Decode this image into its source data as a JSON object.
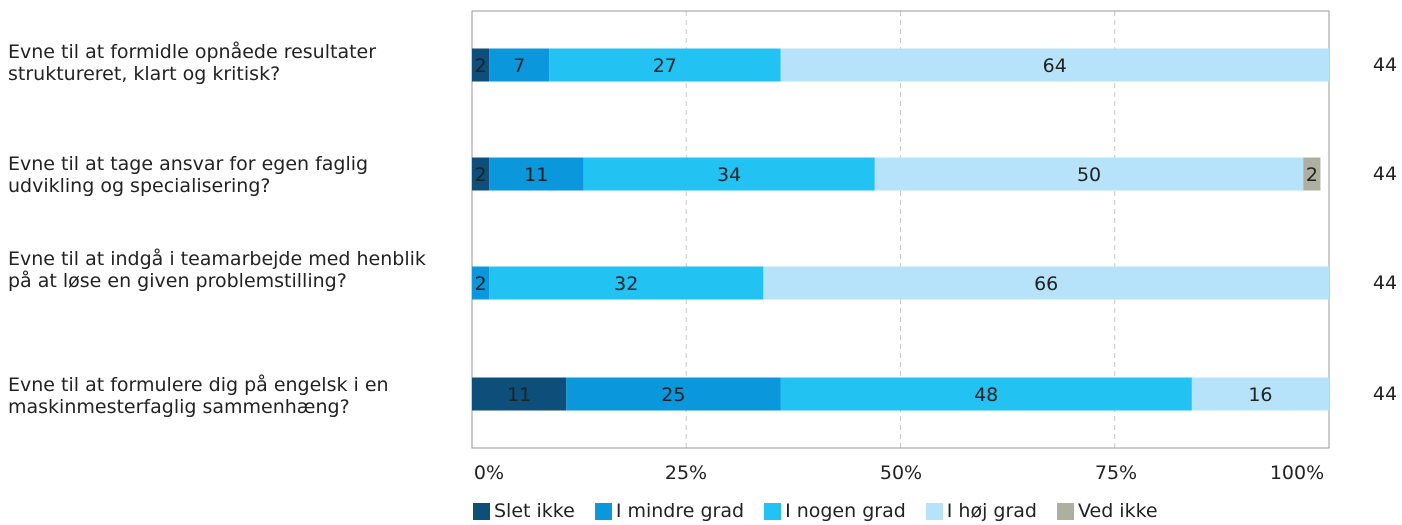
{
  "chart_data": {
    "type": "bar",
    "orientation": "horizontal",
    "stacked": true,
    "categories": [
      "Evne til at formidle opnåede resultater struktureret, klart og kritisk?",
      "Evne til at tage ansvar for egen faglig udvikling og specialisering?",
      "Evne til at indgå i teamarbejde med henblik på at løse en given problemstilling?",
      "Evne til at formulere dig på engelsk i en maskinmesterfaglig sammenhæng?"
    ],
    "series": [
      {
        "name": "Slet ikke",
        "color": "#0e4e7b",
        "values": [
          2,
          2,
          0,
          11
        ]
      },
      {
        "name": "I mindre grad",
        "color": "#0a97dc",
        "values": [
          7,
          11,
          2,
          25
        ]
      },
      {
        "name": "I nogen grad",
        "color": "#22c2f2",
        "values": [
          27,
          34,
          32,
          48
        ]
      },
      {
        "name": "I høj grad",
        "color": "#b6e3f9",
        "values": [
          64,
          50,
          66,
          16
        ]
      },
      {
        "name": "Ved ikke",
        "color": "#adaf9f",
        "values": [
          0,
          2,
          0,
          0
        ]
      }
    ],
    "n_values": [
      "44",
      "44",
      "44",
      "44"
    ],
    "xlim": [
      0,
      100
    ],
    "x_ticks": [
      "0%",
      "25%",
      "50%",
      "75%",
      "100%"
    ],
    "grid": "vertical dashed",
    "legend_position": "bottom"
  }
}
